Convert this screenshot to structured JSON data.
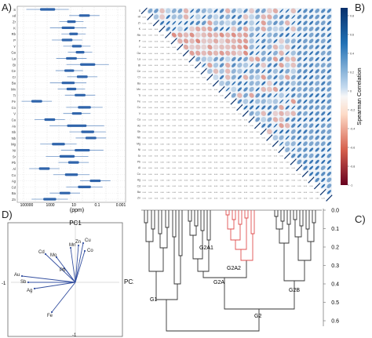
{
  "panels": {
    "a": "A)",
    "b": "B)",
    "c": "C)",
    "d": "D)"
  },
  "panel_a": {
    "xlabel": "(ppm)",
    "xticks": [
      "100000",
      "1000",
      "10",
      "0.1",
      "0.001"
    ],
    "elements": [
      "S",
      "Hf",
      "Zr",
      "K",
      "Rb",
      "P",
      "Y",
      "Ga",
      "La",
      "Bi",
      "Ce",
      "Cr",
      "Ba",
      "Mn",
      "Ti",
      "Fe",
      "Co",
      "V",
      "Ca",
      "As",
      "Sb",
      "Nb",
      "Mg",
      "Ni",
      "Sr",
      "Pb",
      "Al",
      "Cu",
      "Ag",
      "Cd",
      "Ba",
      "Zn"
    ]
  },
  "panel_b": {
    "colorbar_label": "Spearman Correlation",
    "colorbar_ticks": [
      "0.8",
      "0.6",
      "0.4",
      "0.2",
      "0",
      "-0.2",
      "-0.4",
      "-0.6",
      "-0.8",
      "-1"
    ],
    "colors": {
      "pos": "#2f6fae",
      "neg": "#b2182b",
      "mid": "#f7f7f7"
    }
  },
  "panel_c": {
    "y_ticks": [
      "0.0",
      "0.1",
      "0.2",
      "0.3",
      "0.4",
      "0.5",
      "0.6"
    ],
    "groups": [
      "G1",
      "G2",
      "G2A",
      "G2B",
      "G2A1",
      "G2A2"
    ],
    "highlight_color": "#e05050"
  },
  "panel_d": {
    "pc1": "PC1",
    "pc2": "PC2",
    "neg1_left": "-1",
    "neg1_bottom": "-1",
    "vectors": [
      "Cu",
      "Mn",
      "Zn",
      "Co",
      "Cd",
      "Mo",
      "Pb",
      "Au",
      "Sb",
      "Ag",
      "Fe"
    ],
    "vector_color": "#3550a0"
  }
}
